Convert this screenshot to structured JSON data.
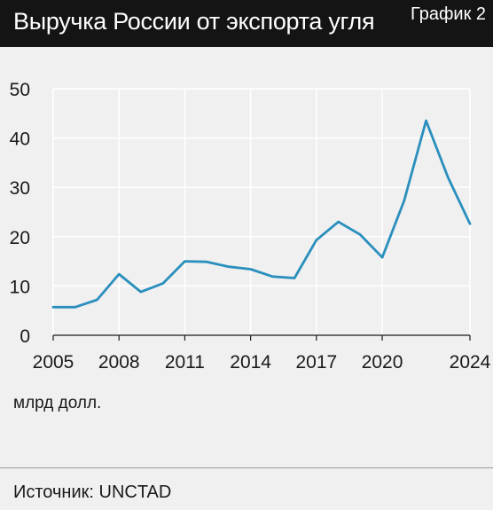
{
  "header": {
    "title": "Выручка России от экспорта угля",
    "label": "График 2"
  },
  "footer": {
    "unit": "млрд долл.",
    "source": "Источник: UNCTAD"
  },
  "colors": {
    "header_bg": "#141414",
    "line": "#2a8fbd",
    "grid": "#ffffff",
    "background": "#f0f0f0"
  },
  "chart_data": {
    "type": "line",
    "title": "Выручка России от экспорта угля",
    "ylabel": "млрд долл.",
    "xlabel": "",
    "xlim": [
      2005,
      2024
    ],
    "ylim": [
      0,
      50
    ],
    "grid": true,
    "legend": "none",
    "x_ticks": [
      2005,
      2008,
      2011,
      2014,
      2017,
      2020,
      2024
    ],
    "y_ticks": [
      0,
      10,
      20,
      30,
      40,
      50
    ],
    "series": [
      {
        "x": [
          2005,
          2006,
          2007,
          2008,
          2009,
          2010,
          2011,
          2012,
          2013,
          2014,
          2015,
          2016,
          2017,
          2018,
          2019,
          2020,
          2021,
          2022,
          2023,
          2024
        ],
        "values": [
          5.7,
          5.7,
          7.2,
          12.4,
          8.8,
          10.5,
          15.0,
          14.9,
          13.9,
          13.4,
          11.9,
          11.6,
          19.3,
          23.0,
          20.4,
          15.8,
          27.3,
          43.5,
          32.0,
          22.6
        ]
      }
    ]
  }
}
